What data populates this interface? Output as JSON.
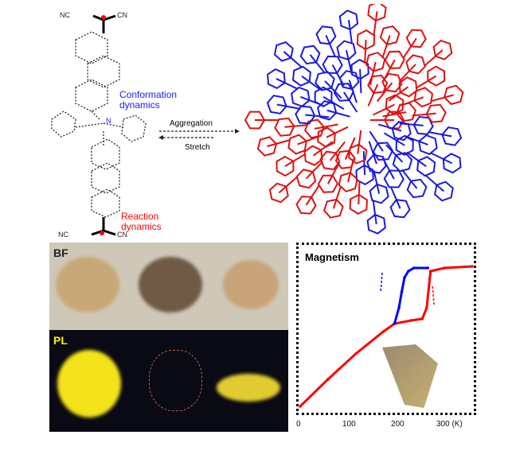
{
  "molecule": {
    "conformation_label": [
      "Conformation",
      "dynamics"
    ],
    "reaction_label": [
      "Reaction",
      "dynamics"
    ],
    "forward_arrow_label": "Aggregation",
    "reverse_arrow_label": "Stretch",
    "colors": {
      "conformation": "#1a1aff",
      "reaction": "#ff0000"
    }
  },
  "photos": {
    "row_labels": [
      "BF",
      "PL"
    ],
    "colors": {
      "bf_background": "#cfc8b8",
      "pl_background": "#0a0a14",
      "pl_label": "#ffee00",
      "emission": "#f4e21a"
    }
  },
  "chart_data": {
    "type": "line",
    "title": "Magnetism",
    "xlabel": "",
    "ylabel": "",
    "x_ticks": [
      "0",
      "100",
      "200",
      "300 (K)"
    ],
    "x_tick_values": [
      0,
      100,
      200,
      300
    ],
    "xlim": [
      0,
      310
    ],
    "ylim": [
      0,
      1
    ],
    "grid": false,
    "series": [
      {
        "color": "#ff0000",
        "direction": "heating",
        "x": [
          0,
          50,
          100,
          150,
          170,
          200,
          220,
          228,
          235,
          260,
          310
        ],
        "y": [
          0.03,
          0.2,
          0.36,
          0.5,
          0.55,
          0.57,
          0.58,
          0.65,
          0.88,
          0.9,
          0.91
        ]
      },
      {
        "color": "#0000ff",
        "direction": "cooling",
        "x": [
          170,
          178,
          183,
          188,
          195,
          205,
          230
        ],
        "y": [
          0.55,
          0.65,
          0.75,
          0.84,
          0.88,
          0.9,
          0.9
        ]
      }
    ]
  }
}
